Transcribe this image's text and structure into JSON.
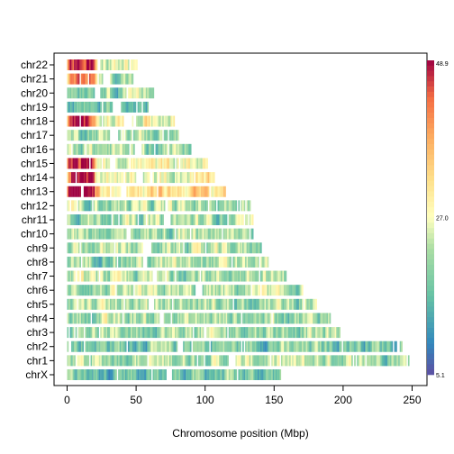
{
  "chart_data": {
    "type": "heatmap",
    "xlabel": "Chromosome position (Mbp)",
    "x_ticks": [
      0,
      50,
      100,
      150,
      200,
      250
    ],
    "xlim": [
      -5,
      260
    ],
    "categories": [
      "chrX",
      "chr1",
      "chr2",
      "chr3",
      "chr4",
      "chr5",
      "chr6",
      "chr7",
      "chr8",
      "chr9",
      "chr10",
      "chr11",
      "chr12",
      "chr13",
      "chr14",
      "chr15",
      "chr16",
      "chr17",
      "chr18",
      "chr19",
      "chr20",
      "chr21",
      "chr22"
    ],
    "chromosome_length_mbp": [
      155,
      249,
      243,
      198,
      191,
      181,
      171,
      159,
      146,
      141,
      135,
      135,
      133,
      115,
      107,
      102,
      90,
      81,
      78,
      59,
      63,
      48,
      51
    ],
    "color_scale": {
      "min": 5.1,
      "mid": 27.0,
      "max": 48.9,
      "labels": [
        "5.1",
        "27.0",
        "48.9"
      ],
      "palette": "Spectral (reversed)"
    },
    "bin_size_mbp": 1,
    "seed_note": ""
  }
}
